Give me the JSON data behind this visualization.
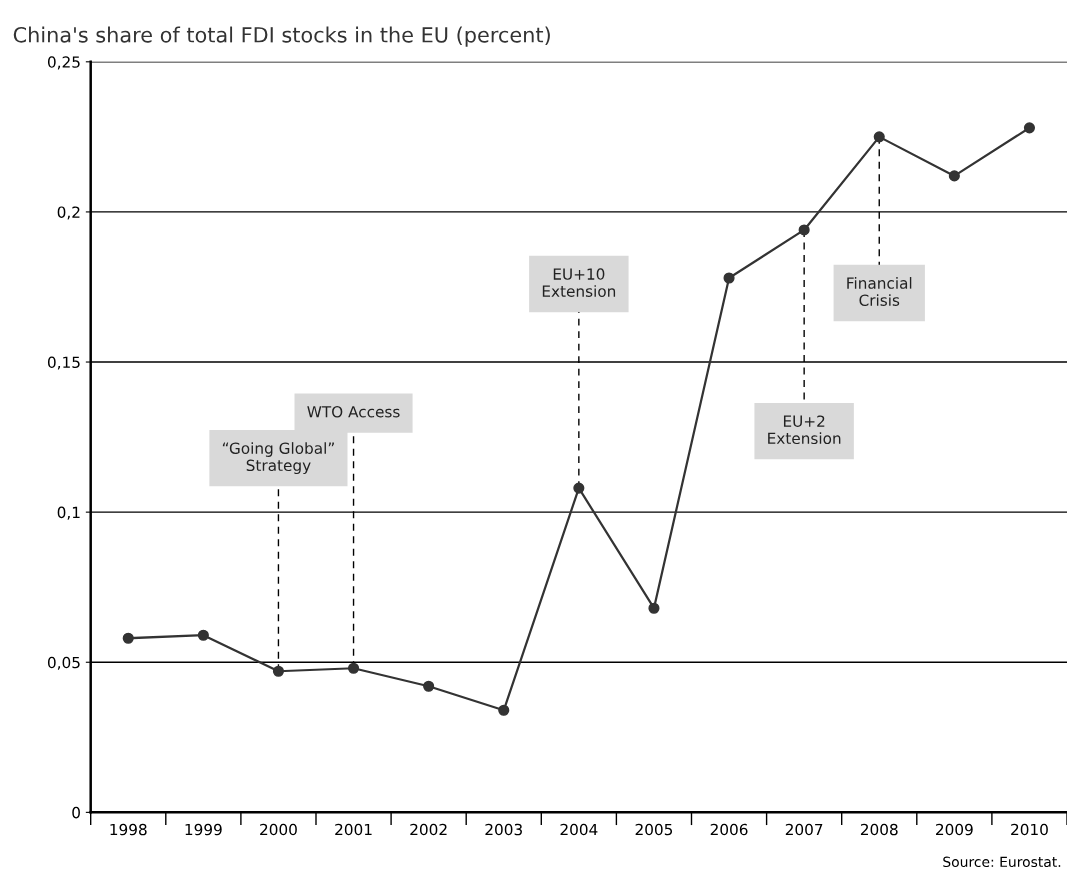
{
  "chart_data": {
    "type": "line",
    "title": "China's share of total FDI stocks in the EU (percent)",
    "categories": [
      "1998",
      "1999",
      "2000",
      "2001",
      "2002",
      "2003",
      "2004",
      "2005",
      "2006",
      "2007",
      "2008",
      "2009",
      "2010"
    ],
    "series": [
      {
        "color": "#333333",
        "values": [
          0.058,
          0.059,
          0.047,
          0.048,
          0.042,
          0.034,
          0.108,
          0.068,
          0.178,
          0.194,
          0.225,
          0.212,
          0.228
        ]
      }
    ],
    "ylim": [
      0,
      0.25
    ],
    "yticks": [
      {
        "value": 0,
        "label": "0"
      },
      {
        "value": 0.05,
        "label": "0,05"
      },
      {
        "value": 0.1,
        "label": "0,1"
      },
      {
        "value": 0.15,
        "label": "0,15"
      },
      {
        "value": 0.2,
        "label": "0,2"
      },
      {
        "value": 0.25,
        "label": "0,25"
      }
    ],
    "grid": "y",
    "marker": "circle",
    "line_style": "solid",
    "annotations": [
      {
        "text": "“Going Global”\nStrategy",
        "x": "2000",
        "y": 0.047
      },
      {
        "text": "WTO Access",
        "x": "2001",
        "y": 0.048
      },
      {
        "text": "EU+10\nExtension",
        "x": "2004",
        "y": 0.108
      },
      {
        "text": "EU+2\nExtension",
        "x": "2007",
        "y": 0.194
      },
      {
        "text": "Financial\nCrisis",
        "x": "2008",
        "y": 0.225
      },
      "Source: Eurostat."
    ]
  }
}
